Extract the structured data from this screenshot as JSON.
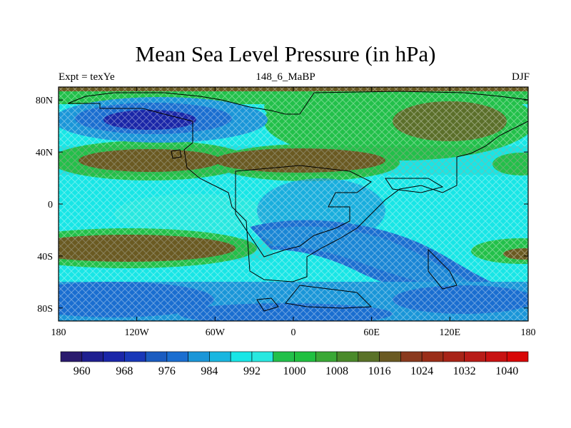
{
  "header": {
    "title": "Mean Sea Level Pressure (in hPa)",
    "left": "Expt = texYe",
    "center": "148_6_MaBP",
    "right": "DJF"
  },
  "map": {
    "x_ticks": [
      "180",
      "120W",
      "60W",
      "0",
      "60E",
      "120E",
      "180"
    ],
    "y_ticks": [
      "80N",
      "40N",
      "0",
      "40S",
      "80S"
    ]
  },
  "colorbar": {
    "labels": [
      "960",
      "968",
      "976",
      "984",
      "992",
      "1000",
      "1008",
      "1016",
      "1024",
      "1032",
      "1040"
    ],
    "colors": [
      "#2a1a6e",
      "#1f1f90",
      "#1a26a8",
      "#1838b8",
      "#1a5cc0",
      "#1a6ed0",
      "#1a96d8",
      "#19b6e0",
      "#18e6e6",
      "#28e8e0",
      "#22c04a",
      "#20c040",
      "#3aa835",
      "#4a8a2a",
      "#5a7228",
      "#6a5a22",
      "#8a3a1e",
      "#9a2e18",
      "#a82418",
      "#b81c18",
      "#c81212",
      "#d80808"
    ]
  },
  "colors": {
    "ocean_high": "#18e6e6",
    "land_green": "#22c04a",
    "low_blue": "#1a6ed0",
    "high_brown": "#6a5a22"
  }
}
